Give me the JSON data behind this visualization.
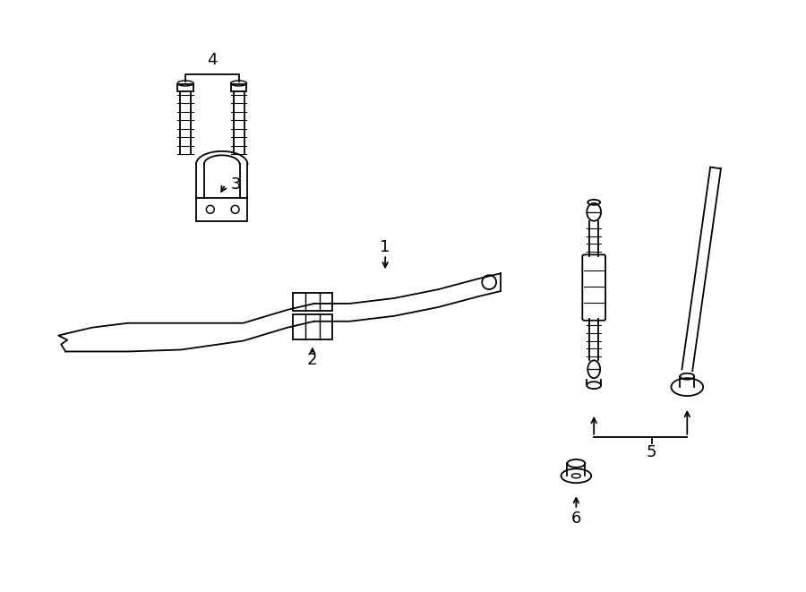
{
  "bg_color": "#ffffff",
  "line_color": "#000000",
  "fig_width": 9.0,
  "fig_height": 6.61,
  "dpi": 100,
  "label_fontsize": 13
}
